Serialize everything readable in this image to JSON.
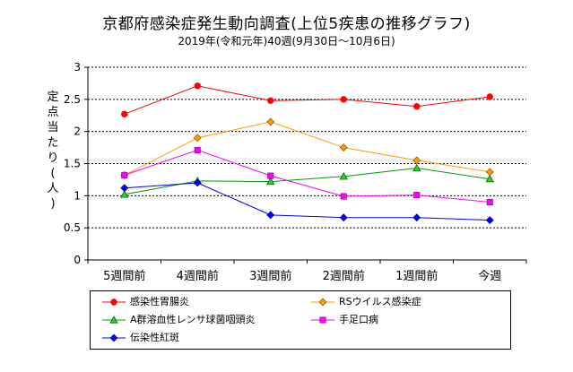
{
  "chart_data": {
    "type": "line",
    "title": "京都府感染症発生動向調査(上位5疾患の推移グラフ)",
    "subtitle": "2019年(令和元年)40週(9月30日〜10月6日)",
    "ylabel_chars": [
      "定",
      "点",
      "当",
      "た",
      "り",
      "(",
      "人",
      ")"
    ],
    "categories": [
      "5週間前",
      "4週間前",
      "3週間前",
      "2週間前",
      "1週間前",
      "今週"
    ],
    "ylim": [
      0,
      3
    ],
    "yticks": [
      "0",
      "0.5",
      "1",
      "1.5",
      "2",
      "2.5",
      "3"
    ],
    "grid": true,
    "legend_position": "bottom",
    "series": [
      {
        "name": "感染性胃腸炎",
        "color": "#ff0000",
        "marker": "circle",
        "values": [
          2.27,
          2.71,
          2.48,
          2.5,
          2.39,
          2.54
        ]
      },
      {
        "name": "RSウイルス感染症",
        "color": "#ff9900",
        "marker": "diamond",
        "values": [
          1.32,
          1.9,
          2.15,
          1.75,
          1.55,
          1.37
        ]
      },
      {
        "name": "A群溶血性レンサ球菌咽頭炎",
        "color": "#009900",
        "marker": "triangle",
        "values": [
          1.02,
          1.23,
          1.22,
          1.3,
          1.43,
          1.26
        ]
      },
      {
        "name": "手足口病",
        "color": "#ff00ff",
        "marker": "square",
        "values": [
          1.32,
          1.71,
          1.31,
          0.99,
          1.01,
          0.9
        ]
      },
      {
        "name": "伝染性紅斑",
        "color": "#0000ff",
        "marker": "diamond",
        "values": [
          1.12,
          1.2,
          0.7,
          0.66,
          0.66,
          0.62
        ]
      }
    ]
  }
}
